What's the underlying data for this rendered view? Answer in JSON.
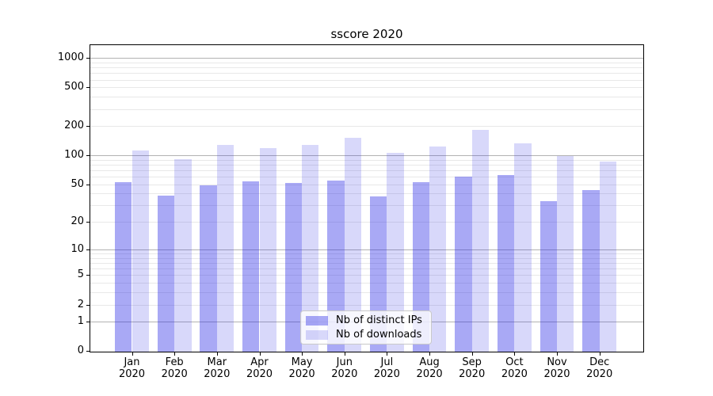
{
  "title": "sscore 2020",
  "chart_data": {
    "type": "bar",
    "title": "sscore 2020",
    "xlabel": "",
    "ylabel": "",
    "yscale": "log1p",
    "ylim": [
      0,
      1360
    ],
    "grid": {
      "major_color": "#b2b2b2",
      "minor_color": "#e8e8e8",
      "major_at": [
        1,
        10,
        100,
        1000
      ]
    },
    "year": "2020",
    "categories": [
      "Jan",
      "Feb",
      "Mar",
      "Apr",
      "May",
      "Jun",
      "Jul",
      "Aug",
      "Sep",
      "Oct",
      "Nov",
      "Dec"
    ],
    "x_tick_labels": [
      "Jan\n2020",
      "Feb\n2020",
      "Mar\n2020",
      "Apr\n2020",
      "May\n2020",
      "Jun\n2020",
      "Jul\n2020",
      "Aug\n2020",
      "Sep\n2020",
      "Oct\n2020",
      "Nov\n2020",
      "Dec\n2020"
    ],
    "y_ticks": [
      {
        "value": 0,
        "label": "0"
      },
      {
        "value": 1,
        "label": "1"
      },
      {
        "value": 2,
        "label": "2"
      },
      {
        "value": 5,
        "label": "5"
      },
      {
        "value": 10,
        "label": "10"
      },
      {
        "value": 20,
        "label": "20"
      },
      {
        "value": 50,
        "label": "50"
      },
      {
        "value": 100,
        "label": "100"
      },
      {
        "value": 200,
        "label": "200"
      },
      {
        "value": 500,
        "label": "500"
      },
      {
        "value": 1000,
        "label": "1000"
      }
    ],
    "series": [
      {
        "name": "Nb of distinct IPs",
        "fill": "rgba(40,40,230,0.40)",
        "swatch_hex": "#aaaaf5",
        "values": [
          53,
          39,
          50,
          54,
          52,
          56,
          38,
          53,
          61,
          63,
          34,
          44
        ]
      },
      {
        "name": "Nb of downloads",
        "fill": "rgba(40,40,230,0.18)",
        "swatch_hex": "#d9d9fa",
        "values": [
          113,
          93,
          131,
          120,
          131,
          153,
          108,
          126,
          186,
          135,
          99,
          88
        ]
      }
    ],
    "legend": {
      "position": "lower center",
      "entries": [
        "Nb of distinct IPs",
        "Nb of downloads"
      ]
    }
  }
}
